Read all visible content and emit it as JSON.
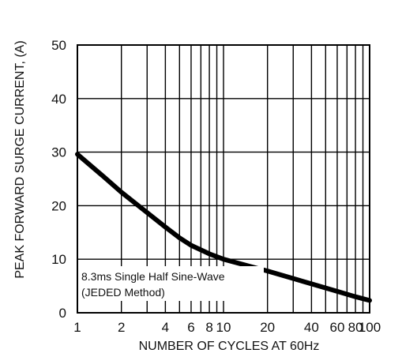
{
  "chart_data": {
    "type": "line",
    "title": "",
    "xlabel": "NUMBER OF CYCLES AT 60Hz",
    "ylabel": "PEAK FORWARD SURGE CURRENT, (A)",
    "xscale": "log",
    "xlim": [
      1,
      100
    ],
    "ylim": [
      0,
      50
    ],
    "x_ticks": [
      1,
      2,
      4,
      6,
      8,
      10,
      20,
      40,
      60,
      80,
      100
    ],
    "y_ticks": [
      0,
      10,
      20,
      30,
      40,
      50
    ],
    "x_gridlines": [
      1,
      2,
      3,
      4,
      5,
      6,
      7,
      8,
      9,
      10,
      20,
      30,
      40,
      50,
      60,
      70,
      80,
      90,
      100
    ],
    "y_gridlines": [
      0,
      10,
      20,
      30,
      40,
      50
    ],
    "grid": true,
    "legend": "none",
    "annotation": [
      "8.3ms Single Half Sine-Wave",
      "(JEDED Method)"
    ],
    "series": [
      {
        "color": "#000000",
        "x": [
          1,
          1.5,
          2,
          3,
          4,
          5,
          6,
          8,
          10,
          15,
          20,
          30,
          40,
          60,
          80,
          100
        ],
        "y": [
          29.6,
          25.5,
          22.5,
          18.7,
          16,
          14,
          12.6,
          11,
          10,
          8.7,
          7.8,
          6.4,
          5.4,
          4,
          3,
          2.3
        ]
      }
    ]
  }
}
